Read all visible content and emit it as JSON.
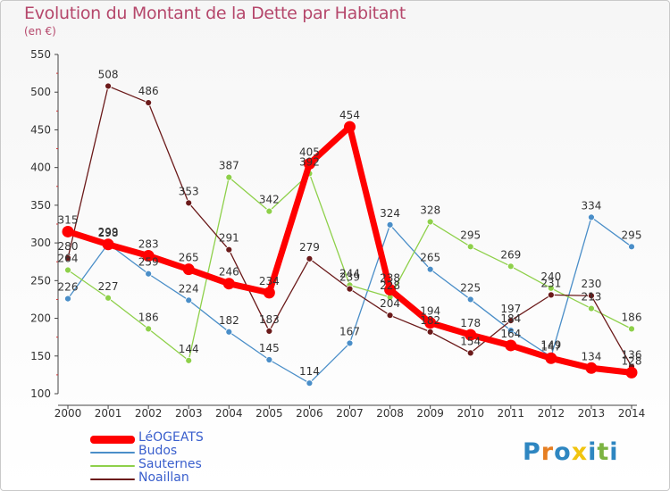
{
  "title": "Evolution du Montant de la Dette par Habitant",
  "subtitle": "(en €)",
  "logo": {
    "letters": [
      "P",
      "r",
      "o",
      "x",
      "i",
      "t",
      "i"
    ],
    "colors": [
      "#2e86c1",
      "#e67e22",
      "#2e86c1",
      "#f1c40f",
      "#2e86c1",
      "#7cb342",
      "#2e86c1"
    ]
  },
  "chart_data": {
    "type": "line",
    "categories": [
      "2000",
      "2001",
      "2002",
      "2003",
      "2004",
      "2005",
      "2006",
      "2007",
      "2008",
      "2009",
      "2010",
      "2011",
      "2012",
      "2013",
      "2014"
    ],
    "ylim": [
      100,
      550
    ],
    "yticks": [
      "100",
      "150",
      "200",
      "250",
      "300",
      "350",
      "400",
      "450",
      "500",
      "550"
    ],
    "grid": false,
    "legend_position": "bottom-left",
    "series": [
      {
        "name": "LéOGEATS",
        "color": "#ff0000",
        "values": [
          315,
          298,
          283,
          265,
          246,
          234,
          405,
          454,
          238,
          194,
          178,
          164,
          147,
          134,
          128
        ],
        "labels": [
          "315",
          "298",
          "283",
          "265",
          "246",
          "234",
          "405",
          "454",
          "238",
          "194",
          "178",
          "164",
          "147",
          "134",
          "128"
        ]
      },
      {
        "name": "Budos",
        "color": "#4a8ec8",
        "values": [
          226,
          299,
          259,
          224,
          182,
          145,
          114,
          167,
          324,
          265,
          225,
          184,
          149,
          334,
          295
        ],
        "labels": [
          "226",
          "299",
          "259",
          "224",
          "182",
          "145",
          "114",
          "167",
          "324",
          "265",
          "225",
          "184",
          "149",
          "334",
          "295"
        ]
      },
      {
        "name": "Sauternes",
        "color": "#8ed04a",
        "values": [
          264,
          227,
          186,
          144,
          387,
          342,
          392,
          244,
          228,
          328,
          295,
          269,
          240,
          213,
          186
        ],
        "labels": [
          "264",
          "227",
          "186",
          "144",
          "387",
          "342",
          "392",
          "244",
          "228",
          "328",
          "295",
          "269",
          "240",
          "213",
          "186"
        ]
      },
      {
        "name": "Noaillan",
        "color": "#6b1a1a",
        "values": [
          280,
          508,
          486,
          353,
          291,
          183,
          279,
          239,
          204,
          182,
          154,
          197,
          231,
          230,
          136
        ],
        "labels": [
          "280",
          "508",
          "486",
          "353",
          "291",
          "183",
          "279",
          "239",
          "204",
          "182",
          "154",
          "197",
          "231",
          "230",
          "136"
        ]
      }
    ]
  }
}
